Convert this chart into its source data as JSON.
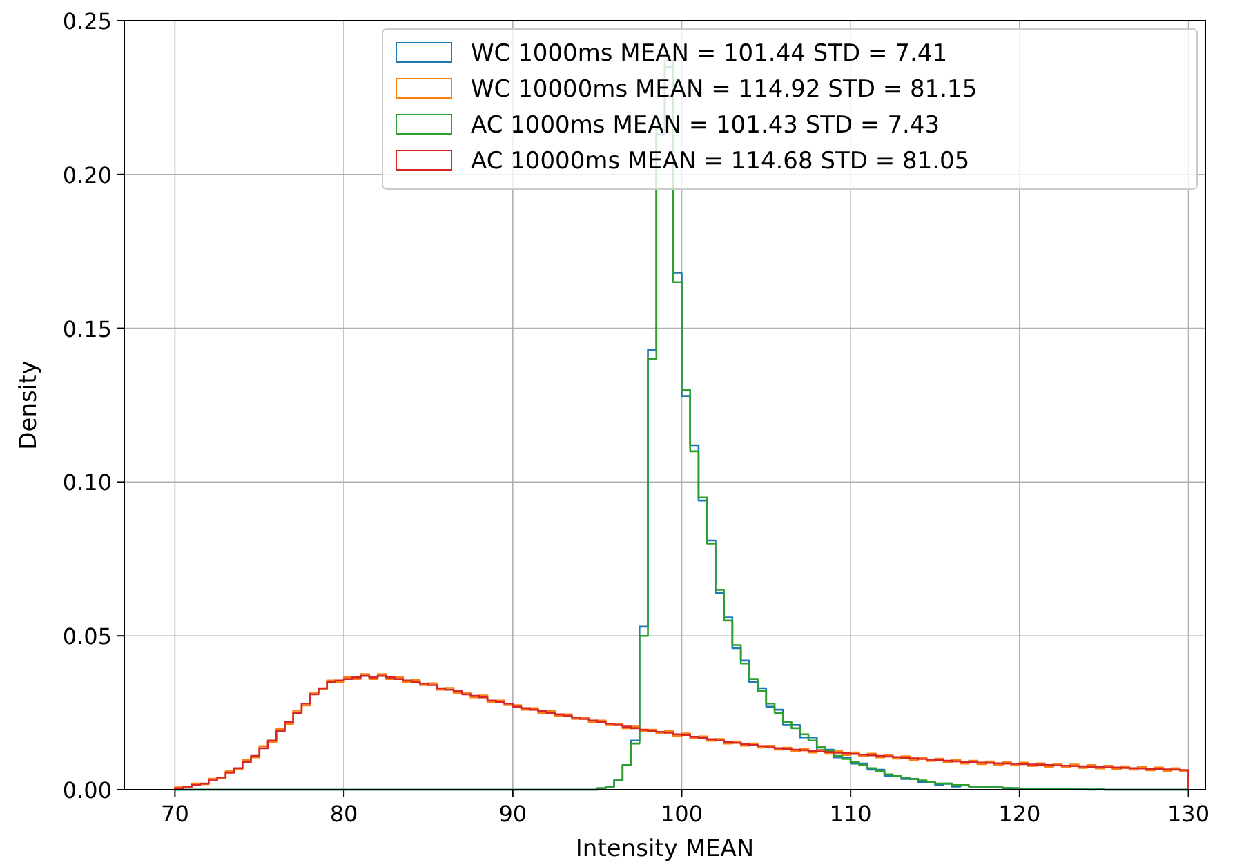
{
  "chart_data": {
    "type": "histogram",
    "xlabel": "Intensity MEAN",
    "ylabel": "Density",
    "xlim": [
      67,
      131
    ],
    "ylim": [
      0,
      0.25
    ],
    "xticks": [
      70,
      80,
      90,
      100,
      110,
      120,
      130
    ],
    "yticks": [
      {
        "value": 0,
        "label": "0.00"
      },
      {
        "value": 0.05,
        "label": "0.05"
      },
      {
        "value": 0.1,
        "label": "0.10"
      },
      {
        "value": 0.15,
        "label": "0.15"
      },
      {
        "value": 0.2,
        "label": "0.20"
      },
      {
        "value": 0.25,
        "label": "0.25"
      }
    ],
    "grid": true,
    "legend": "top right",
    "bins": [
      70,
      70.5,
      71,
      71.5,
      72,
      72.5,
      73,
      73.5,
      74,
      74.5,
      75,
      75.5,
      76,
      76.5,
      77,
      77.5,
      78,
      78.5,
      79,
      79.5,
      80,
      80.5,
      81,
      81.5,
      82,
      82.5,
      83,
      83.5,
      84,
      84.5,
      85,
      85.5,
      86,
      86.5,
      87,
      87.5,
      88,
      88.5,
      89,
      89.5,
      90,
      90.5,
      91,
      91.5,
      92,
      92.5,
      93,
      93.5,
      94,
      94.5,
      95,
      95.5,
      96,
      96.5,
      97,
      97.5,
      98,
      98.5,
      99,
      99.5,
      100,
      100.5,
      101,
      101.5,
      102,
      102.5,
      103,
      103.5,
      104,
      104.5,
      105,
      105.5,
      106,
      106.5,
      107,
      107.5,
      108,
      108.5,
      109,
      109.5,
      110,
      110.5,
      111,
      111.5,
      112,
      112.5,
      113,
      113.5,
      114,
      114.5,
      115,
      115.5,
      116,
      116.5,
      117,
      117.5,
      118,
      118.5,
      119,
      119.5,
      120,
      120.5,
      121,
      121.5,
      122,
      122.5,
      123,
      123.5,
      124,
      124.5,
      125,
      125.5,
      126,
      126.5,
      127,
      127.5,
      128,
      128.5,
      129,
      129.5,
      130
    ],
    "series": [
      {
        "name": "WC 1000ms MEAN = 101.44 STD = 7.41",
        "color": "#1f77b4",
        "values": [
          0,
          0,
          0,
          0,
          0,
          0,
          0,
          0,
          0,
          0,
          0,
          0,
          0,
          0,
          0,
          0,
          0,
          0,
          0,
          0,
          0,
          0,
          0,
          0,
          0,
          0,
          0,
          0,
          0,
          0,
          0,
          0,
          0,
          0,
          0,
          0,
          0,
          0,
          0,
          0,
          0,
          0,
          0,
          0,
          0,
          0,
          0,
          0,
          0,
          0,
          0.0005,
          0.001,
          0.003,
          0.008,
          0.016,
          0.053,
          0.143,
          0.213,
          0.235,
          0.168,
          0.128,
          0.112,
          0.094,
          0.081,
          0.064,
          0.056,
          0.046,
          0.042,
          0.035,
          0.033,
          0.027,
          0.026,
          0.021,
          0.021,
          0.017,
          0.017,
          0.013,
          0.013,
          0.0105,
          0.0105,
          0.0085,
          0.0085,
          0.0065,
          0.0065,
          0.0045,
          0.0045,
          0.0035,
          0.0035,
          0.0025,
          0.0025,
          0.0015,
          0.002,
          0.001,
          0.0015,
          0.001,
          0.001,
          0.0008,
          0.0008,
          0.0005,
          0.0005,
          0.0003,
          0.0003,
          0.0002,
          0.0002,
          0.0001,
          0.0002,
          0.0001,
          0.0001,
          0,
          0.0001,
          0,
          0,
          0,
          0,
          0,
          0,
          0,
          0,
          0,
          0
        ]
      },
      {
        "name": "WC 10000ms MEAN = 114.92 STD = 81.15",
        "color": "#ff7f0e",
        "values": [
          0.0008,
          0.0009,
          0.002,
          0.0018,
          0.0036,
          0.0037,
          0.006,
          0.0067,
          0.0096,
          0.0105,
          0.0142,
          0.0155,
          0.0197,
          0.0214,
          0.0257,
          0.0274,
          0.0316,
          0.0326,
          0.0355,
          0.035,
          0.0366,
          0.036,
          0.0376,
          0.036,
          0.0376,
          0.036,
          0.0366,
          0.035,
          0.0356,
          0.034,
          0.0346,
          0.0325,
          0.0331,
          0.0315,
          0.0316,
          0.03,
          0.0306,
          0.0285,
          0.029,
          0.0275,
          0.0275,
          0.026,
          0.0265,
          0.025,
          0.0255,
          0.024,
          0.0245,
          0.023,
          0.0235,
          0.022,
          0.0225,
          0.021,
          0.0215,
          0.02,
          0.0205,
          0.019,
          0.0195,
          0.0183,
          0.019,
          0.0175,
          0.0183,
          0.0167,
          0.0173,
          0.0159,
          0.0165,
          0.015,
          0.0157,
          0.0143,
          0.015,
          0.0137,
          0.0143,
          0.013,
          0.0137,
          0.0125,
          0.0133,
          0.0121,
          0.0129,
          0.0117,
          0.0125,
          0.0113,
          0.0121,
          0.0109,
          0.0117,
          0.0105,
          0.0113,
          0.0101,
          0.0109,
          0.0097,
          0.0105,
          0.0093,
          0.0101,
          0.0089,
          0.0097,
          0.0085,
          0.0094,
          0.0083,
          0.0092,
          0.0081,
          0.009,
          0.0079,
          0.0088,
          0.0077,
          0.0086,
          0.0075,
          0.0084,
          0.0073,
          0.0082,
          0.0071,
          0.008,
          0.0069,
          0.0078,
          0.0067,
          0.0076,
          0.0065,
          0.0074,
          0.0063,
          0.0072,
          0.0061,
          0.007,
          0.0059
        ]
      },
      {
        "name": "AC 1000ms MEAN = 101.43 STD = 7.43",
        "color": "#2ca02c",
        "values": [
          0,
          0,
          0,
          0,
          0,
          0,
          0,
          0,
          0,
          0,
          0,
          0,
          0,
          0,
          0,
          0,
          0,
          0,
          0,
          0,
          0,
          0,
          0,
          0,
          0,
          0,
          0,
          0,
          0,
          0,
          0,
          0,
          0,
          0,
          0,
          0,
          0,
          0,
          0,
          0,
          0,
          0,
          0,
          0,
          0,
          0,
          0,
          0,
          0,
          0,
          0.0005,
          0.001,
          0.003,
          0.008,
          0.015,
          0.05,
          0.14,
          0.215,
          0.237,
          0.165,
          0.13,
          0.11,
          0.095,
          0.08,
          0.065,
          0.055,
          0.047,
          0.041,
          0.036,
          0.032,
          0.028,
          0.025,
          0.022,
          0.02,
          0.018,
          0.016,
          0.014,
          0.0125,
          0.011,
          0.01,
          0.009,
          0.008,
          0.007,
          0.006,
          0.005,
          0.0045,
          0.004,
          0.0035,
          0.003,
          0.0025,
          0.002,
          0.002,
          0.0015,
          0.0015,
          0.001,
          0.001,
          0.001,
          0.0008,
          0.0006,
          0.0005,
          0.0004,
          0.0003,
          0.0003,
          0.0002,
          0.0002,
          0.0002,
          0.0001,
          0.0001,
          0.0001,
          0.0001,
          0,
          0,
          0,
          0,
          0,
          0,
          0,
          0,
          0,
          0
        ]
      },
      {
        "name": "AC 10000ms MEAN = 114.68 STD = 81.05",
        "color": "#d62728",
        "values": [
          0.0005,
          0.001,
          0.0015,
          0.002,
          0.003,
          0.004,
          0.0055,
          0.007,
          0.009,
          0.011,
          0.0135,
          0.016,
          0.019,
          0.022,
          0.025,
          0.028,
          0.031,
          0.033,
          0.035,
          0.0355,
          0.036,
          0.0365,
          0.037,
          0.0365,
          0.037,
          0.0365,
          0.036,
          0.0355,
          0.035,
          0.0345,
          0.034,
          0.033,
          0.0325,
          0.032,
          0.031,
          0.0305,
          0.03,
          0.029,
          0.0285,
          0.028,
          0.027,
          0.0265,
          0.026,
          0.0255,
          0.025,
          0.0245,
          0.024,
          0.0235,
          0.023,
          0.0225,
          0.022,
          0.0215,
          0.021,
          0.0205,
          0.02,
          0.0195,
          0.019,
          0.0188,
          0.0185,
          0.018,
          0.0178,
          0.0172,
          0.0168,
          0.0164,
          0.016,
          0.0155,
          0.0152,
          0.0148,
          0.0145,
          0.0142,
          0.0138,
          0.0135,
          0.0132,
          0.013,
          0.0128,
          0.0126,
          0.0124,
          0.0122,
          0.012,
          0.0118,
          0.0116,
          0.0114,
          0.0112,
          0.011,
          0.0108,
          0.0106,
          0.0104,
          0.0102,
          0.01,
          0.0098,
          0.0096,
          0.0094,
          0.0092,
          0.009,
          0.0089,
          0.0088,
          0.0087,
          0.0086,
          0.0085,
          0.0084,
          0.0083,
          0.0082,
          0.0081,
          0.008,
          0.0079,
          0.0078,
          0.0077,
          0.0076,
          0.0075,
          0.0074,
          0.0073,
          0.0072,
          0.0071,
          0.007,
          0.0069,
          0.0068,
          0.0067,
          0.0066,
          0.0065,
          0.0064
        ]
      }
    ]
  }
}
